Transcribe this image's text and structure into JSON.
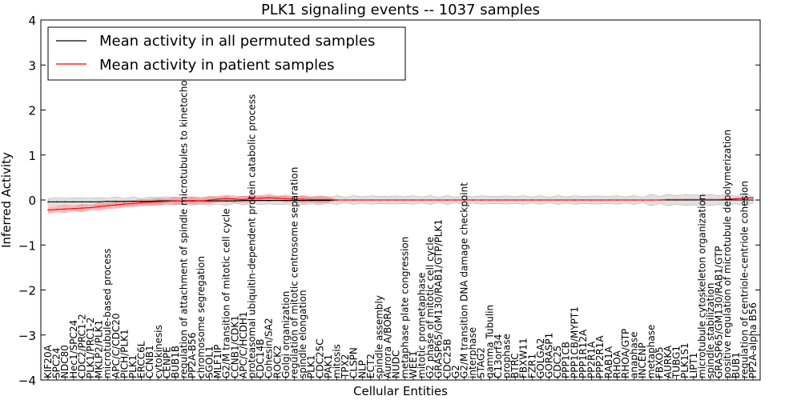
{
  "chart_data": {
    "type": "line",
    "title": "PLK1 signaling events -- 1037 samples",
    "xlabel": "Cellular Entities",
    "ylabel": "Inferred Activity",
    "ylim": [
      -4,
      4
    ],
    "yticks": [
      -4,
      -3,
      -2,
      -1,
      0,
      1,
      2,
      3,
      4
    ],
    "legend_position": "top-left",
    "legend": [
      {
        "label": "Mean activity in all permuted samples",
        "color": "#000000"
      },
      {
        "label": "Mean activity in patient samples",
        "color": "#ff0000"
      }
    ],
    "categories": [
      "KIF20A",
      "SPC24",
      "NDC80",
      "Hec1/SPC24",
      "CDC2/PRC1-2",
      "PLK1/PRC1-2",
      "MKLP2/PLK1",
      "microtubule-based process",
      "APC/C/CDC20",
      "PICH/PLK1",
      "PLK1",
      "ERCC6L",
      "CCNB1",
      "cytokinesis",
      "CENPE",
      "BUB1B",
      "regulation of attachment of spindle microtubules to kinetochore",
      "PP2A-B56",
      "chromosome segregation",
      "SGOL1",
      "MLF1IP",
      "G2/M transition of mitotic cell cycle",
      "CCNB1/CDK1",
      "APC/C/HCDH1",
      "proteasomal ubiquitin-dependent protein catabolic process",
      "CDC14B",
      "Cohesin/SA2",
      "ROCK2",
      "Golgi organization",
      "regulation of mitotic centrosome separation",
      "spindle elongation",
      "PLK1",
      "CDC25C",
      "PAK1",
      "mitosis",
      "TPX2",
      "CLSPN",
      "NLP",
      "ECT2",
      "spindle assembly",
      "Aurora A/BORA",
      "NUDC",
      "metaphase plate congression",
      "WEE1",
      "mitotic prometaphase",
      "G2 phase of mitotic cell cycle",
      "GRASP65/GM130/RAB1/GTP/PLK1",
      "CDC25B",
      "G2",
      "G2/M transition DNA damage checkpoint",
      "interphase",
      "STAG2",
      "gamma Tubulin",
      "C13orf34",
      "prophase",
      "BTRC",
      "FBXW11",
      "FZR1",
      "GOLGA2",
      "GORASP1",
      "CDC25",
      "PPP1CB",
      "PPP1CB/MYPT1",
      "PPP1R12A",
      "PP2R1A",
      "PPP2R1A",
      "RAB1A",
      "RHOA",
      "RHOA/GTP",
      "anaphase",
      "INCENP",
      "metaphase",
      "FBXO5",
      "AURKA",
      "TUBG1",
      "PLK1S1",
      "LIPT1",
      "microtubule cytoskeleton organization",
      "spindle stabilization",
      "GRASP65/GM130/RAB1/GTP",
      "positive regulation of microtubule depolymerization",
      "BUB1",
      "regulation of centriole-centriole cohesion",
      "PP2A-alpha B56"
    ],
    "series": [
      {
        "name": "Mean activity in all permuted samples",
        "color": "#000000",
        "values": [
          -0.04,
          -0.04,
          -0.04,
          -0.04,
          -0.04,
          -0.04,
          -0.04,
          -0.03,
          -0.03,
          -0.03,
          -0.03,
          -0.03,
          -0.03,
          -0.02,
          -0.02,
          -0.02,
          -0.02,
          -0.02,
          -0.02,
          -0.02,
          -0.02,
          -0.02,
          -0.02,
          -0.01,
          -0.01,
          -0.01,
          -0.01,
          -0.01,
          -0.01,
          -0.01,
          -0.01,
          -0.01,
          -0.01,
          -0.01,
          0,
          0,
          0,
          0,
          0,
          0,
          0,
          0,
          0,
          0,
          0,
          0,
          0,
          0,
          0,
          0,
          0,
          0,
          0,
          0,
          0,
          0,
          0,
          0,
          0,
          0,
          0,
          0,
          0,
          0,
          0,
          0,
          0,
          0,
          0,
          0,
          0,
          0,
          0,
          0,
          0,
          0,
          0,
          0,
          0,
          0,
          0,
          0,
          0,
          0
        ]
      },
      {
        "name": "Mean activity in patient samples",
        "color": "#ff0000",
        "values": [
          -0.22,
          -0.21,
          -0.2,
          -0.19,
          -0.18,
          -0.17,
          -0.15,
          -0.13,
          -0.11,
          -0.09,
          -0.08,
          -0.06,
          -0.05,
          -0.04,
          -0.03,
          -0.02,
          -0.02,
          -0.01,
          -0.02,
          0,
          0.02,
          0.03,
          0.02,
          0.01,
          0.03,
          0.04,
          0.05,
          0.04,
          0.03,
          0.02,
          0.02,
          0.01,
          0.01,
          0.01,
          0,
          0,
          0,
          0,
          0,
          0,
          0,
          0,
          0,
          0,
          0,
          0,
          0,
          0,
          0,
          0,
          0,
          0,
          0,
          0,
          0,
          0,
          0,
          0,
          0,
          0,
          0,
          0,
          0,
          0,
          0,
          0,
          0,
          0,
          0,
          0,
          0,
          0,
          0,
          0.01,
          0.01,
          0.01,
          0.01,
          0.01,
          0.01,
          0.01,
          0.02,
          0.03,
          0.04,
          0.05
        ]
      }
    ]
  }
}
